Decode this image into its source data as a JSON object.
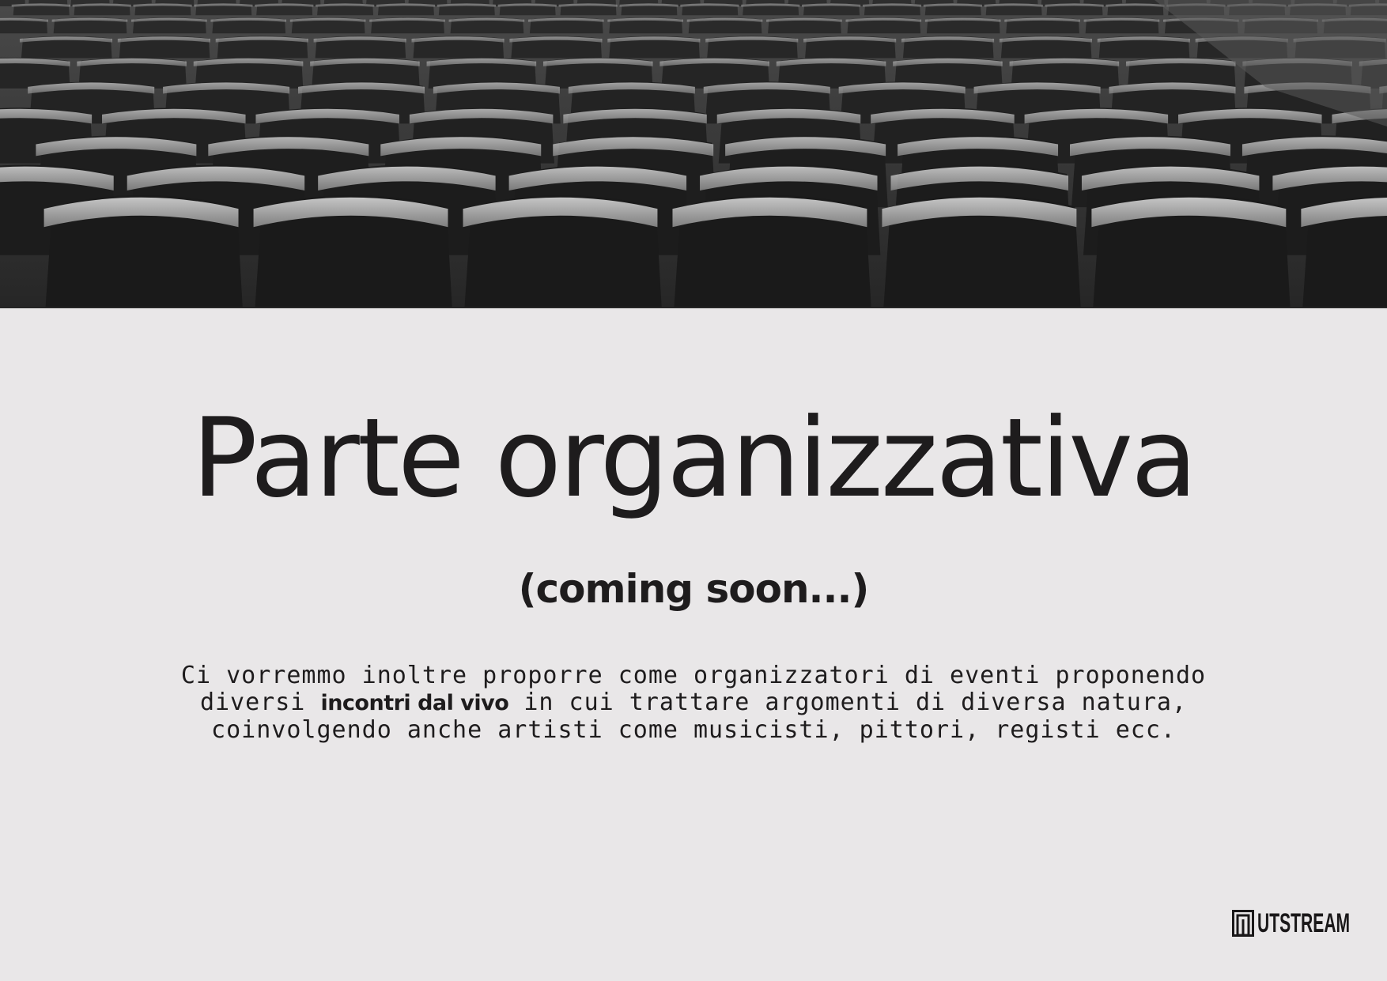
{
  "hero_image": {
    "description_icon": "theater-seats-photo"
  },
  "title": "Parte organizzativa",
  "subtitle": "(coming soon...)",
  "body": {
    "before_bold": "Ci vorremmo inoltre proporre come organizzatori di eventi proponendo diversi ",
    "bold": "incontri dal vivo",
    "after_bold": " in cui trattare argomenti di diversa natura, coinvolgendo anche artisti come musicisti, pittori, registi ecc."
  },
  "brand": {
    "logo_text": "UTSTREAM",
    "logo_icon": "mutstream-logo-mark"
  },
  "colors": {
    "background": "#e9e7e8",
    "text": "#1e1c1d"
  }
}
